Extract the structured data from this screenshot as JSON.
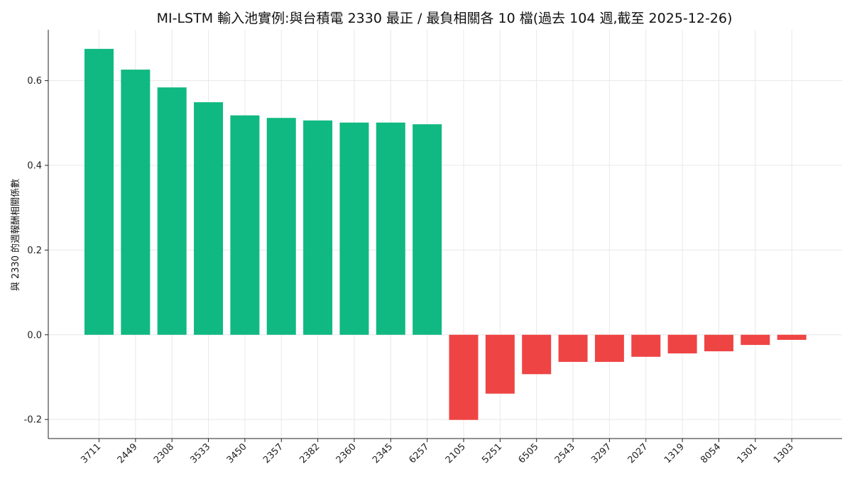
{
  "chart_data": {
    "type": "bar",
    "title": "MI-LSTM 輸入池實例:與台積電 2330 最正 / 最負相關各 10 檔(過去 104 週,截至 2025-12-26)",
    "xlabel": "",
    "ylabel": "與 2330 的週報酬相關係數",
    "ylim": [
      -0.245,
      0.72
    ],
    "yticks": [
      "-0.2",
      "0.0",
      "0.2",
      "0.4",
      "0.6"
    ],
    "ytick_values": [
      -0.2,
      0.0,
      0.2,
      0.4,
      0.6
    ],
    "grid": true,
    "categories": [
      "3711",
      "2449",
      "2308",
      "3533",
      "3450",
      "2357",
      "2382",
      "2360",
      "2345",
      "6257",
      "2105",
      "5251",
      "6505",
      "2543",
      "3297",
      "2027",
      "1319",
      "8054",
      "1301",
      "1303"
    ],
    "values": [
      0.675,
      0.626,
      0.584,
      0.549,
      0.518,
      0.512,
      0.506,
      0.501,
      0.501,
      0.497,
      -0.201,
      -0.139,
      -0.093,
      -0.064,
      -0.064,
      -0.052,
      -0.044,
      -0.039,
      -0.024,
      -0.012
    ],
    "colors": {
      "positive": "#10b981",
      "negative": "#ef4444"
    }
  }
}
